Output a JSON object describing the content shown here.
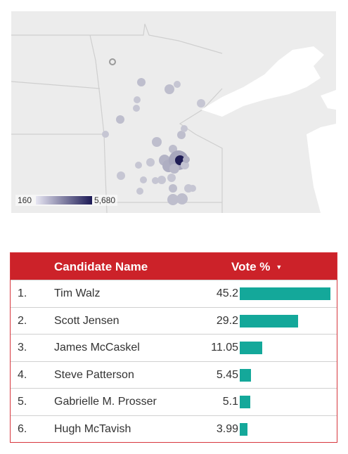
{
  "legend": {
    "min_label": "160",
    "max_label": "5,680"
  },
  "table": {
    "header": {
      "name": "Candidate Name",
      "vote": "Vote %",
      "sort_icon": "▼"
    },
    "bar_color": "#14a89a",
    "header_color": "#cc2229",
    "max_value": 45.2,
    "rows": [
      {
        "rank": "1.",
        "name": "Tim Walz",
        "vote": "45.2",
        "value": 45.2
      },
      {
        "rank": "2.",
        "name": "Scott Jensen",
        "vote": "29.2",
        "value": 29.2
      },
      {
        "rank": "3.",
        "name": "James McCaskel",
        "vote": "11.05",
        "value": 11.05
      },
      {
        "rank": "4.",
        "name": "Steve Patterson",
        "vote": "5.45",
        "value": 5.45
      },
      {
        "rank": "5.",
        "name": "Gabrielle M. Prosser",
        "vote": "5.1",
        "value": 5.1
      },
      {
        "rank": "6.",
        "name": "Hugh McTavish",
        "vote": "3.99",
        "value": 3.99
      }
    ]
  }
}
